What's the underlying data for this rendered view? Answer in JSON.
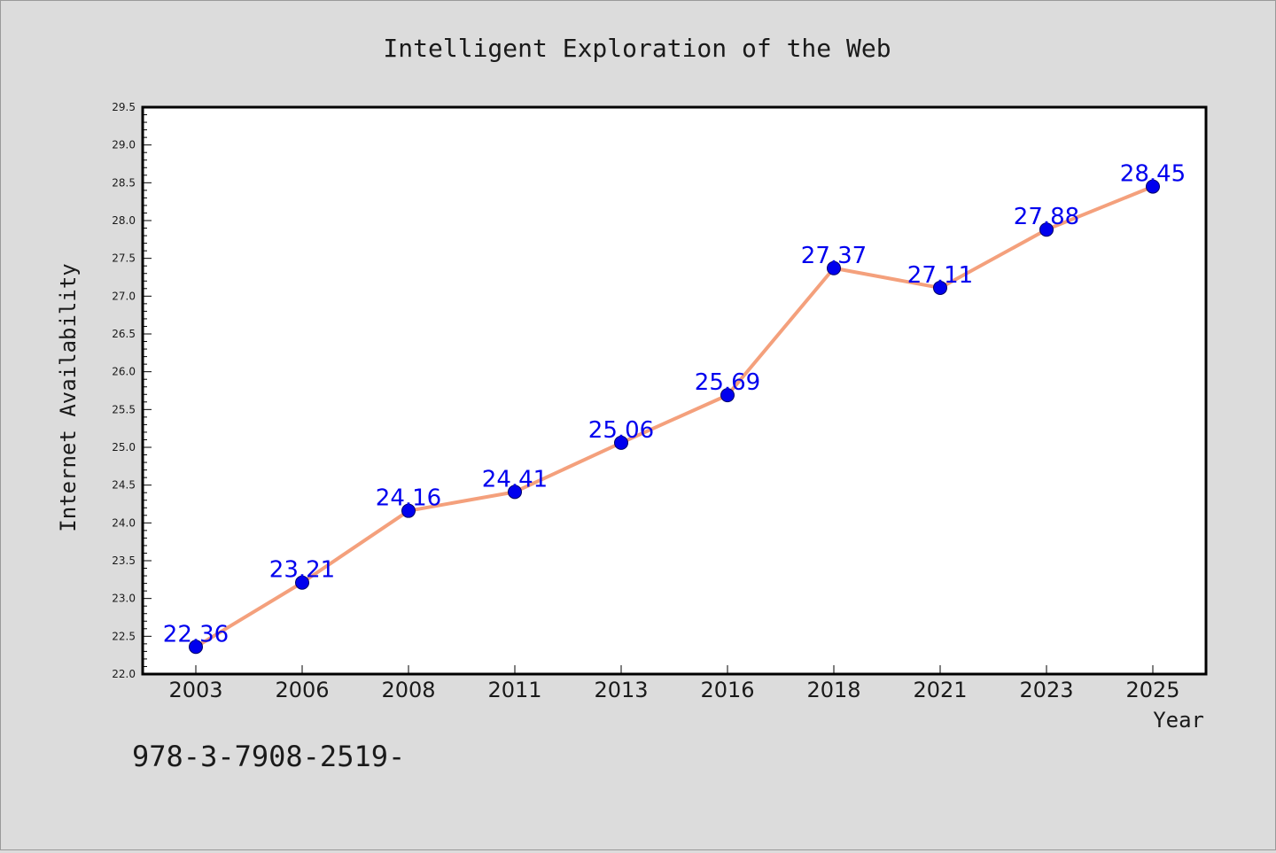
{
  "colors": {
    "background": "#dcdcdc",
    "plot_background": "#ffffff",
    "line": "#f4a07c",
    "marker": "#0000ee",
    "data_label": "#0000ee"
  },
  "footer_text": "978-3-7908-2519-",
  "chart_data": {
    "type": "line",
    "title": "Intelligent Exploration of the Web",
    "xlabel": "Year",
    "ylabel": "Internet Availability",
    "categories": [
      "2003",
      "2006",
      "2008",
      "2011",
      "2013",
      "2016",
      "2018",
      "2021",
      "2023",
      "2025"
    ],
    "series": [
      {
        "values": [
          22.36,
          23.21,
          24.16,
          24.41,
          25.06,
          25.69,
          27.37,
          27.11,
          27.88,
          28.45
        ]
      }
    ],
    "data_labels": [
      "22.36",
      "23.21",
      "24.16",
      "24.41",
      "25.06",
      "25.69",
      "27.37",
      "27.11",
      "27.88",
      "28.45"
    ],
    "ylim": [
      22.0,
      29.5
    ],
    "yticks": [
      "22.0",
      "22.5",
      "23.0",
      "23.5",
      "24.0",
      "24.5",
      "25.0",
      "25.5",
      "26.0",
      "26.5",
      "27.0",
      "27.5",
      "28.0",
      "28.5",
      "29.0",
      "29.5"
    ],
    "grid": false,
    "legend": "none",
    "marker": "circle"
  }
}
